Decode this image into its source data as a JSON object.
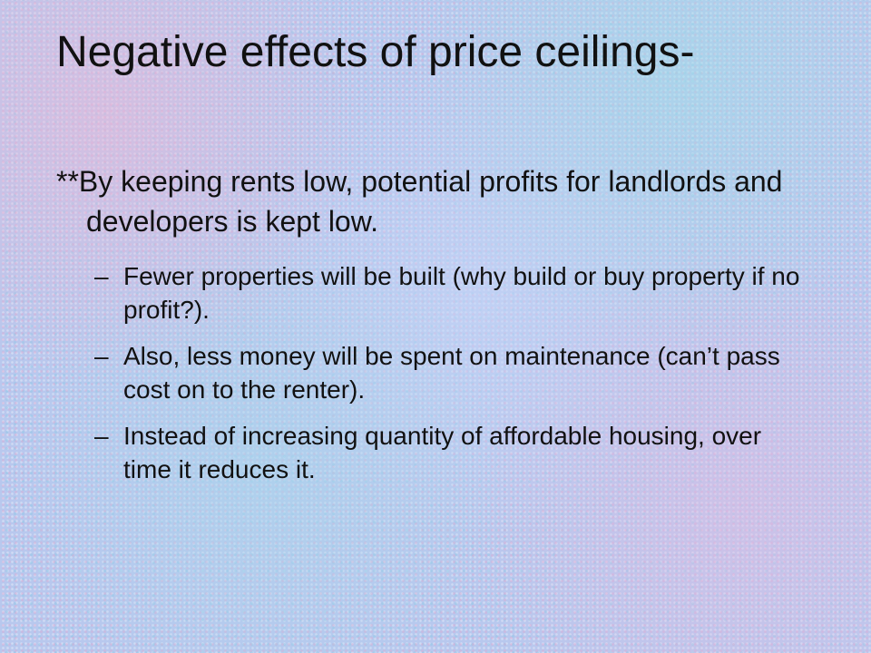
{
  "slide": {
    "title": "Negative effects of price ceilings-",
    "main_bullet": "**By keeping rents low, potential profits for landlords and developers is kept low.",
    "sub_bullet_marker": "–",
    "sub_bullets": [
      "Fewer properties will be built (why build or buy property if no profit?).",
      "Also, less money will be spent on maintenance (can’t pass cost on to the renter).",
      "Instead of increasing quantity of affordable housing, over time it reduces it."
    ]
  },
  "theme": {
    "background": "#b8c8ee",
    "text_color": "#111111"
  }
}
